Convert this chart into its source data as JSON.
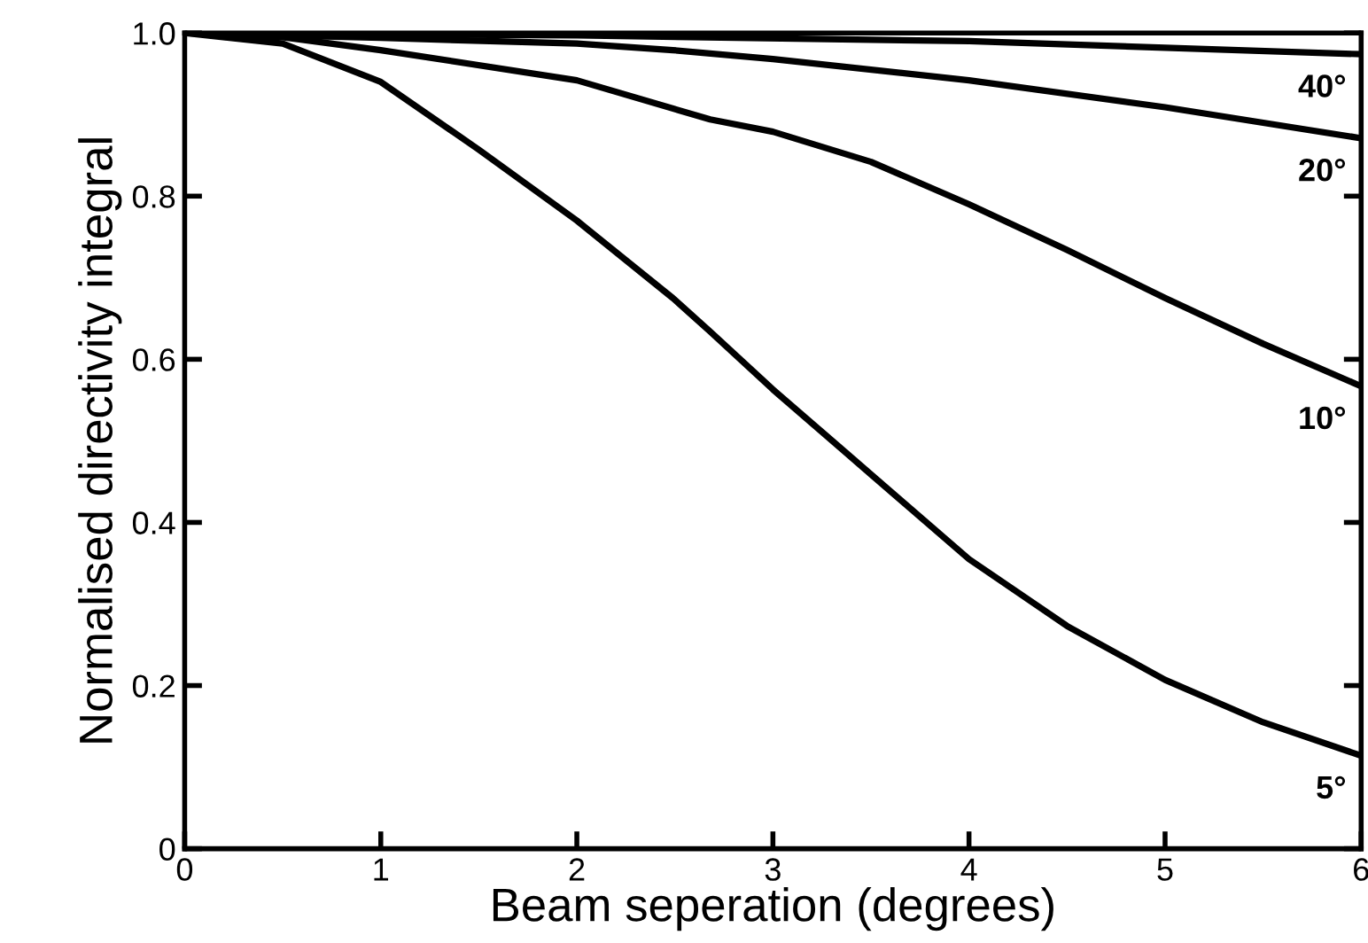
{
  "chart_data": {
    "type": "line",
    "xlabel": "Beam seperation (degrees)",
    "ylabel": "Normalised directivity integral",
    "xlim": [
      0,
      6
    ],
    "ylim": [
      0,
      1.0
    ],
    "xticks": [
      0,
      1,
      2,
      3,
      4,
      5,
      6
    ],
    "yticks": [
      0,
      0.2,
      0.4,
      0.6,
      0.8,
      {
        "value": 1.0,
        "label": "1.0"
      }
    ],
    "grid": false,
    "marker": "none",
    "line_style": "solid",
    "series": [
      {
        "name": "5°",
        "color": "#000000",
        "x": [
          0,
          0.5,
          1,
          1.5,
          2,
          2.49,
          2.68,
          3,
          3.5,
          4,
          4.5,
          5,
          5.5,
          6
        ],
        "values": [
          1.0,
          0.987,
          0.94,
          0.857,
          0.77,
          0.675,
          0.634,
          0.563,
          0.459,
          0.355,
          0.273,
          0.207,
          0.155,
          0.114
        ]
      },
      {
        "name": "10°",
        "color": "#000000",
        "x": [
          0,
          0.5,
          1,
          2,
          2.68,
          3,
          3.5,
          4,
          4.5,
          5,
          5.5,
          6
        ],
        "values": [
          1.0,
          0.995,
          0.979,
          0.942,
          0.894,
          0.879,
          0.842,
          0.79,
          0.734,
          0.675,
          0.619,
          0.567
        ]
      },
      {
        "name": "20°",
        "color": "#000000",
        "x": [
          0,
          1,
          2,
          2.49,
          3,
          4,
          5,
          6
        ],
        "values": [
          1.0,
          0.994,
          0.987,
          0.979,
          0.968,
          0.942,
          0.909,
          0.871
        ]
      },
      {
        "name": "40°",
        "color": "#000000",
        "x": [
          0,
          2,
          4,
          6
        ],
        "values": [
          1.0,
          0.997,
          0.99,
          0.974
        ]
      }
    ]
  }
}
